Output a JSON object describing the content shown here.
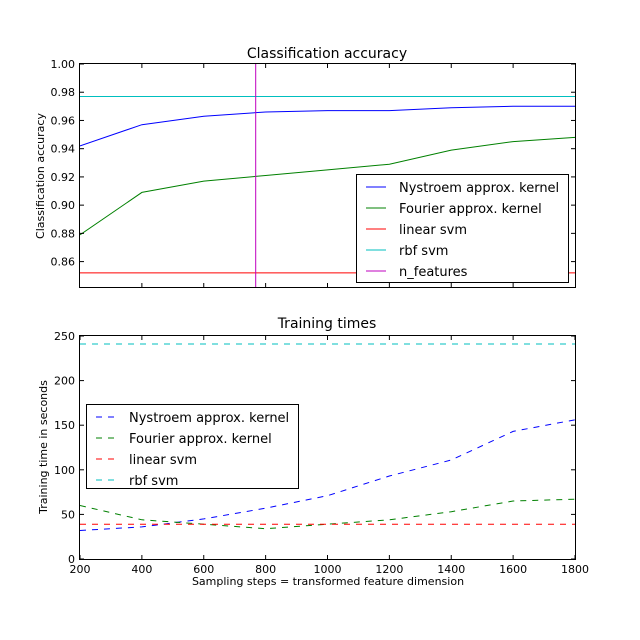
{
  "chart_data": [
    {
      "type": "line",
      "title": "Classification accuracy",
      "xlabel": "",
      "ylabel": "Classification accuracy",
      "xlim": [
        200,
        1800
      ],
      "ylim": [
        0.842,
        1.0
      ],
      "yticks": [
        0.86,
        0.88,
        0.9,
        0.92,
        0.94,
        0.96,
        0.98,
        1.0
      ],
      "ytick_labels": [
        "0.86",
        "0.88",
        "0.90",
        "0.92",
        "0.94",
        "0.96",
        "0.98",
        "1.00"
      ],
      "show_xtick_labels": false,
      "grid": false,
      "legend_position": "lower-right",
      "series": [
        {
          "name": "Nystroem approx. kernel",
          "color": "#0000ff",
          "dash": "solid",
          "x": [
            200,
            400,
            600,
            800,
            1000,
            1200,
            1400,
            1600,
            1800
          ],
          "y": [
            0.942,
            0.957,
            0.963,
            0.966,
            0.967,
            0.967,
            0.969,
            0.97,
            0.97
          ]
        },
        {
          "name": "Fourier approx. kernel",
          "color": "#008000",
          "dash": "solid",
          "x": [
            200,
            400,
            600,
            800,
            1000,
            1200,
            1400,
            1600,
            1800
          ],
          "y": [
            0.879,
            0.909,
            0.917,
            0.921,
            0.925,
            0.929,
            0.939,
            0.945,
            0.948
          ]
        },
        {
          "name": "linear svm",
          "color": "#ff0000",
          "dash": "solid",
          "x": [
            200,
            1800
          ],
          "y": [
            0.852,
            0.852
          ]
        },
        {
          "name": "rbf svm",
          "color": "#00bfbf",
          "dash": "solid",
          "x": [
            200,
            1800
          ],
          "y": [
            0.977,
            0.977
          ]
        },
        {
          "name": "n_features",
          "color": "#bf00bf",
          "dash": "solid",
          "orientation": "vertical",
          "x": [
            768,
            768
          ],
          "y": [
            0.842,
            1.0
          ]
        }
      ]
    },
    {
      "type": "line",
      "title": "Training times",
      "xlabel": "Sampling steps = transformed feature dimension",
      "ylabel": "Training time in seconds",
      "xlim": [
        200,
        1800
      ],
      "ylim": [
        0,
        250
      ],
      "xticks": [
        200,
        400,
        600,
        800,
        1000,
        1200,
        1400,
        1600,
        1800
      ],
      "xtick_labels": [
        "200",
        "400",
        "600",
        "800",
        "1000",
        "1200",
        "1400",
        "1600",
        "1800"
      ],
      "yticks": [
        0,
        50,
        100,
        150,
        200,
        250
      ],
      "ytick_labels": [
        "0",
        "50",
        "100",
        "150",
        "200",
        "250"
      ],
      "grid": false,
      "legend_position": "center-left",
      "series": [
        {
          "name": "Nystroem approx. kernel",
          "color": "#0000ff",
          "dash": "dashed",
          "x": [
            200,
            400,
            600,
            800,
            1000,
            1200,
            1400,
            1600,
            1800
          ],
          "y": [
            32,
            36,
            45,
            57,
            71,
            93,
            111,
            143,
            156
          ]
        },
        {
          "name": "Fourier approx. kernel",
          "color": "#008000",
          "dash": "dashed",
          "x": [
            200,
            400,
            600,
            800,
            1000,
            1200,
            1400,
            1600,
            1800
          ],
          "y": [
            60,
            44,
            39,
            34,
            39,
            44,
            53,
            65,
            67
          ]
        },
        {
          "name": "linear svm",
          "color": "#ff0000",
          "dash": "dashed",
          "x": [
            200,
            1800
          ],
          "y": [
            39,
            39
          ]
        },
        {
          "name": "rbf svm",
          "color": "#00bfbf",
          "dash": "dashed",
          "x": [
            200,
            1800
          ],
          "y": [
            241,
            241
          ]
        }
      ]
    }
  ]
}
